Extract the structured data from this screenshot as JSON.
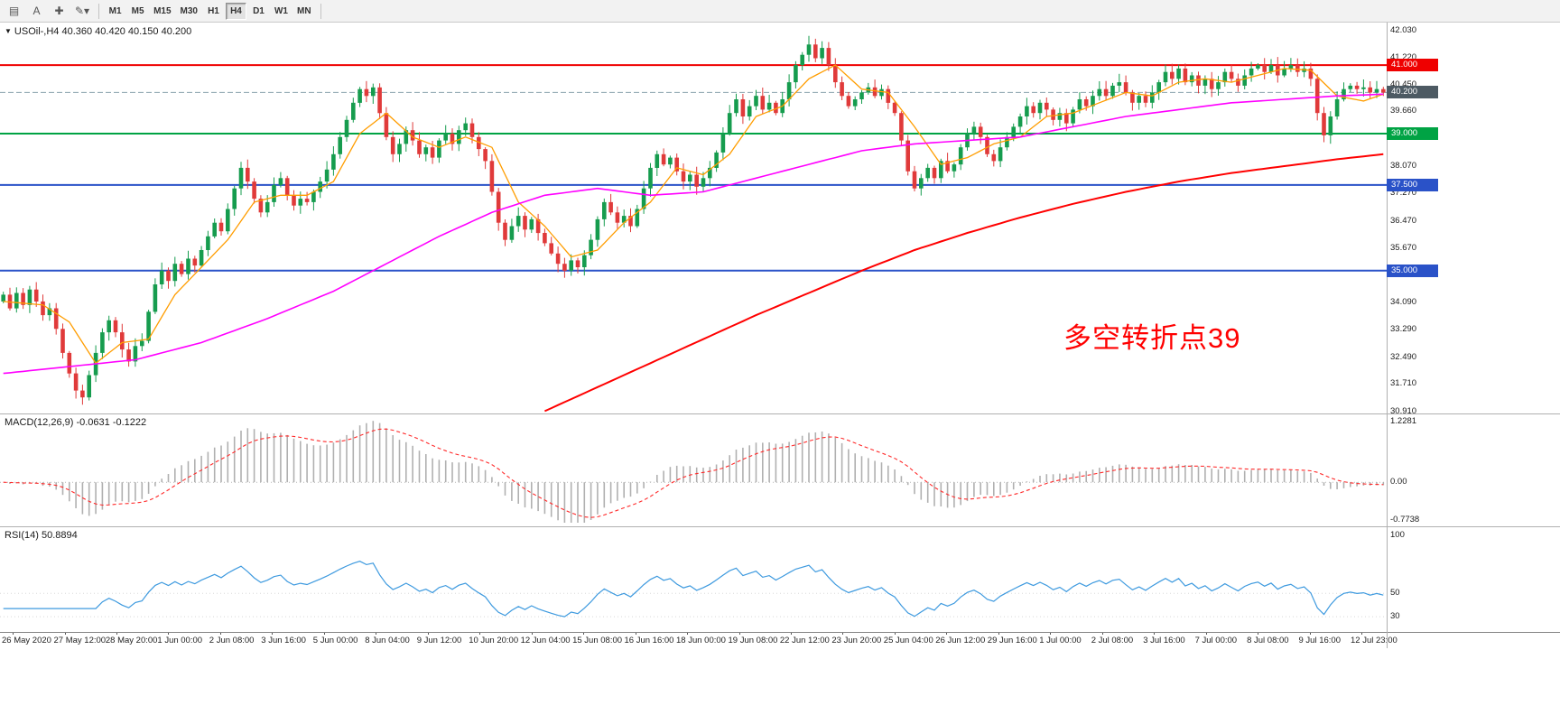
{
  "toolbar": {
    "tools": [
      {
        "name": "chart-window-icon",
        "glyph": "▤"
      },
      {
        "name": "text-tool-icon",
        "glyph": "A"
      },
      {
        "name": "crosshair-tool-icon",
        "glyph": "✚"
      },
      {
        "name": "drawing-tools-icon",
        "glyph": "✎▾"
      }
    ],
    "timeframes": [
      "M1",
      "M5",
      "M15",
      "M30",
      "H1",
      "H4",
      "D1",
      "W1",
      "MN"
    ],
    "active_timeframe": "H4"
  },
  "chart": {
    "title": "USOil-,H4 40.360 40.420 40.150 40.200",
    "menu_arrow": "▼",
    "annotation": "多空转折点39",
    "annotation_color": "#ff0000",
    "price_range": {
      "top": 42.03,
      "bottom": 30.91
    },
    "price_axis_labels": [
      "42.030",
      "41.220",
      "40.450",
      "39.660",
      "38.870",
      "38.070",
      "37.270",
      "36.470",
      "35.670",
      "34.890",
      "34.090",
      "33.290",
      "32.490",
      "31.710",
      "30.910"
    ],
    "levels": [
      {
        "value": 41.0,
        "label": "41.000",
        "color": "#ef0000",
        "box": "#ef0000",
        "width": 2
      },
      {
        "value": 40.2,
        "label": "40.200",
        "color": "#8ba2ae",
        "box": "#4d5a63",
        "width": 1,
        "current": true
      },
      {
        "value": 39.0,
        "label": "39.000",
        "color": "#00a344",
        "box": "#00a344",
        "width": 2
      },
      {
        "value": 37.5,
        "label": "37.500",
        "color": "#2a52c8",
        "box": "#2a52c8",
        "width": 2
      },
      {
        "value": 35.0,
        "label": "35.000",
        "color": "#2a52c8",
        "box": "#2a52c8",
        "width": 2
      }
    ],
    "time_axis_labels": [
      "26 May 2020",
      "27 May 12:00",
      "28 May 20:00",
      "1 Jun 00:00",
      "2 Jun 08:00",
      "3 Jun 16:00",
      "5 Jun 00:00",
      "8 Jun 04:00",
      "9 Jun 12:00",
      "10 Jun 20:00",
      "12 Jun 04:00",
      "15 Jun 08:00",
      "16 Jun 16:00",
      "18 Jun 00:00",
      "19 Jun 08:00",
      "22 Jun 12:00",
      "23 Jun 20:00",
      "25 Jun 04:00",
      "26 Jun 12:00",
      "29 Jun 16:00",
      "1 Jul 00:00",
      "2 Jul 08:00",
      "3 Jul 16:00",
      "7 Jul 00:00",
      "8 Jul 08:00",
      "9 Jul 16:00",
      "12 Jul 23:00"
    ]
  },
  "chart_data": {
    "type": "candlestick",
    "symbol": "USOil",
    "timeframe": "H4",
    "open": "40.360",
    "high": "40.420",
    "low": "40.150",
    "close": "40.200",
    "ylim": [
      30.91,
      42.03
    ],
    "first_open": 34.1,
    "up_color": "#169c4e",
    "down_color": "#e03a3a",
    "closes": [
      34.3,
      33.9,
      34.35,
      34.0,
      34.45,
      34.1,
      33.7,
      33.9,
      33.3,
      32.6,
      32.0,
      31.5,
      31.3,
      31.95,
      32.6,
      33.2,
      33.55,
      33.2,
      32.7,
      32.35,
      32.8,
      32.95,
      33.8,
      34.6,
      35.0,
      34.7,
      35.2,
      34.9,
      35.35,
      35.15,
      35.6,
      36.0,
      36.4,
      36.15,
      36.8,
      37.4,
      38.0,
      37.6,
      37.1,
      36.7,
      37.0,
      37.5,
      37.7,
      37.2,
      36.9,
      37.1,
      37.0,
      37.3,
      37.6,
      37.95,
      38.4,
      38.9,
      39.4,
      39.9,
      40.3,
      40.1,
      40.35,
      39.6,
      38.9,
      38.4,
      38.7,
      39.1,
      38.8,
      38.4,
      38.6,
      38.3,
      38.8,
      39.0,
      38.7,
      39.1,
      39.3,
      38.9,
      38.55,
      38.2,
      37.3,
      36.4,
      35.9,
      36.3,
      36.6,
      36.2,
      36.5,
      36.1,
      35.8,
      35.5,
      35.2,
      35.0,
      35.3,
      35.1,
      35.45,
      35.9,
      36.5,
      37.0,
      36.7,
      36.4,
      36.6,
      36.3,
      36.8,
      37.4,
      38.0,
      38.4,
      38.1,
      38.3,
      37.9,
      37.6,
      37.8,
      37.45,
      37.7,
      38.0,
      38.45,
      39.0,
      39.6,
      40.0,
      39.5,
      39.8,
      40.1,
      39.7,
      39.9,
      39.6,
      40.0,
      40.5,
      41.0,
      41.3,
      41.6,
      41.2,
      41.5,
      41.0,
      40.5,
      40.1,
      39.8,
      40.0,
      40.2,
      40.35,
      40.1,
      40.3,
      39.9,
      39.6,
      38.8,
      37.9,
      37.4,
      37.7,
      38.0,
      37.7,
      38.2,
      37.9,
      38.1,
      38.6,
      39.0,
      39.2,
      38.9,
      38.4,
      38.2,
      38.6,
      38.9,
      39.2,
      39.5,
      39.8,
      39.6,
      39.9,
      39.7,
      39.4,
      39.6,
      39.3,
      39.7,
      40.0,
      39.8,
      40.1,
      40.3,
      40.1,
      40.4,
      40.5,
      40.2,
      39.9,
      40.1,
      39.9,
      40.2,
      40.5,
      40.8,
      40.6,
      40.9,
      40.5,
      40.7,
      40.4,
      40.6,
      40.3,
      40.5,
      40.8,
      40.6,
      40.4,
      40.7,
      40.9,
      41.0,
      40.8,
      41.0,
      40.7,
      40.9,
      41.0,
      40.8,
      40.9,
      40.6,
      39.6,
      38.95,
      39.5,
      40.0,
      40.3,
      40.4,
      40.3,
      40.35,
      40.2,
      40.3,
      40.2
    ],
    "moving_averages": [
      {
        "name": "ma-fast",
        "color": "#ff9d00",
        "width": 1.3,
        "keypoints": [
          [
            0,
            34.1
          ],
          [
            6,
            34.0
          ],
          [
            10,
            33.5
          ],
          [
            14,
            32.3
          ],
          [
            18,
            32.9
          ],
          [
            22,
            33.0
          ],
          [
            26,
            34.3
          ],
          [
            30,
            35.1
          ],
          [
            34,
            35.9
          ],
          [
            38,
            37.0
          ],
          [
            42,
            37.2
          ],
          [
            46,
            37.2
          ],
          [
            50,
            37.6
          ],
          [
            54,
            39.0
          ],
          [
            58,
            39.6
          ],
          [
            62,
            38.9
          ],
          [
            66,
            38.6
          ],
          [
            70,
            38.9
          ],
          [
            74,
            38.6
          ],
          [
            78,
            37.0
          ],
          [
            82,
            36.3
          ],
          [
            86,
            35.4
          ],
          [
            90,
            35.6
          ],
          [
            94,
            36.4
          ],
          [
            98,
            37.0
          ],
          [
            102,
            38.0
          ],
          [
            106,
            37.8
          ],
          [
            110,
            38.4
          ],
          [
            114,
            39.5
          ],
          [
            118,
            39.8
          ],
          [
            122,
            40.6
          ],
          [
            126,
            41.0
          ],
          [
            130,
            40.3
          ],
          [
            134,
            40.2
          ],
          [
            138,
            39.2
          ],
          [
            142,
            38.1
          ],
          [
            146,
            38.3
          ],
          [
            150,
            38.7
          ],
          [
            154,
            38.9
          ],
          [
            158,
            39.5
          ],
          [
            162,
            39.6
          ],
          [
            166,
            39.9
          ],
          [
            170,
            40.2
          ],
          [
            174,
            40.1
          ],
          [
            178,
            40.5
          ],
          [
            182,
            40.6
          ],
          [
            186,
            40.5
          ],
          [
            190,
            40.7
          ],
          [
            194,
            40.9
          ],
          [
            198,
            40.85
          ],
          [
            202,
            40.1
          ],
          [
            206,
            39.95
          ],
          [
            209,
            40.15
          ]
        ]
      },
      {
        "name": "ma-mid",
        "color": "#ff00ff",
        "width": 1.6,
        "keypoints": [
          [
            0,
            32.0
          ],
          [
            10,
            32.2
          ],
          [
            20,
            32.4
          ],
          [
            30,
            32.9
          ],
          [
            40,
            33.6
          ],
          [
            50,
            34.4
          ],
          [
            58,
            35.2
          ],
          [
            66,
            36.0
          ],
          [
            74,
            36.7
          ],
          [
            82,
            37.2
          ],
          [
            90,
            37.4
          ],
          [
            98,
            37.2
          ],
          [
            106,
            37.3
          ],
          [
            114,
            37.7
          ],
          [
            122,
            38.1
          ],
          [
            130,
            38.5
          ],
          [
            138,
            38.7
          ],
          [
            146,
            38.8
          ],
          [
            154,
            38.9
          ],
          [
            162,
            39.2
          ],
          [
            170,
            39.5
          ],
          [
            178,
            39.7
          ],
          [
            186,
            39.9
          ],
          [
            194,
            40.0
          ],
          [
            202,
            40.1
          ],
          [
            209,
            40.15
          ]
        ]
      },
      {
        "name": "ma-slow",
        "color": "#ff0000",
        "width": 2,
        "keypoints": [
          [
            82,
            30.9
          ],
          [
            90,
            31.6
          ],
          [
            98,
            32.3
          ],
          [
            106,
            33.0
          ],
          [
            114,
            33.7
          ],
          [
            122,
            34.35
          ],
          [
            130,
            35.0
          ],
          [
            138,
            35.6
          ],
          [
            146,
            36.1
          ],
          [
            154,
            36.55
          ],
          [
            162,
            36.95
          ],
          [
            170,
            37.3
          ],
          [
            178,
            37.6
          ],
          [
            186,
            37.85
          ],
          [
            194,
            38.05
          ],
          [
            202,
            38.25
          ],
          [
            209,
            38.4
          ]
        ]
      }
    ]
  },
  "macd": {
    "label": "MACD(12,26,9) -0.0631 -0.1222",
    "fast": 12,
    "slow": 26,
    "signal_period": 9,
    "macd_value": -0.0631,
    "signal_value": -0.1222,
    "histogram_color": "#b0b0b0",
    "signal_color": "#ff2a2a",
    "scale": {
      "max": 1.2281,
      "min": -0.7738,
      "labels": [
        "1.2281",
        "0.00",
        "-0.7738"
      ]
    }
  },
  "rsi": {
    "label": "RSI(14) 50.8894",
    "period": 14,
    "value": 50.8894,
    "line_color": "#3e9adf",
    "scale": {
      "vmax": 105,
      "vmin": 20,
      "labels": [
        {
          "text": "100",
          "value": 100
        },
        {
          "text": "50",
          "value": 50
        },
        {
          "text": "30",
          "value": 30
        }
      ]
    }
  }
}
